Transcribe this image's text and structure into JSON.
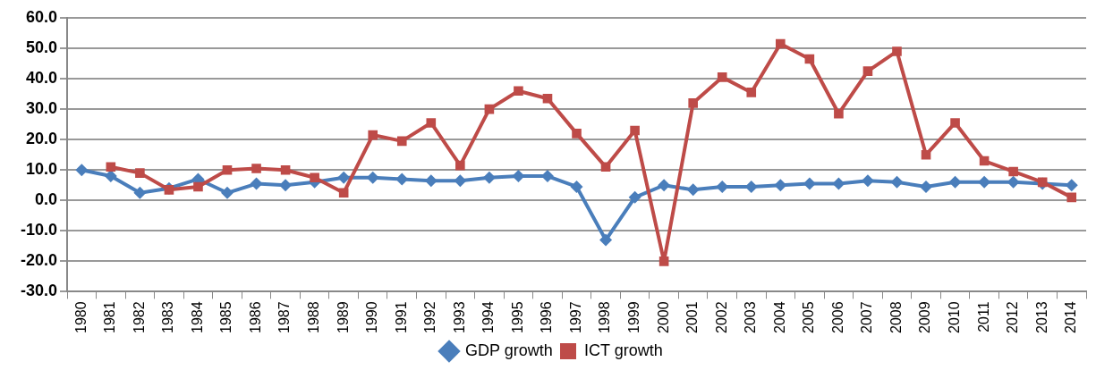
{
  "chart_data": {
    "type": "line",
    "categories": [
      "1980",
      "1981",
      "1982",
      "1983",
      "1984",
      "1985",
      "1986",
      "1987",
      "1988",
      "1989",
      "1990",
      "1991",
      "1992",
      "1993",
      "1994",
      "1995",
      "1996",
      "1997",
      "1998",
      "1999",
      "2000",
      "2001",
      "2002",
      "2003",
      "2004",
      "2005",
      "2006",
      "2007",
      "2008",
      "2009",
      "2010",
      "2011",
      "2012",
      "2013",
      "2014"
    ],
    "series": [
      {
        "name": "GDP growth",
        "color": "#4a7ebb",
        "marker": "diamond",
        "values": [
          10,
          8,
          2.5,
          4,
          7,
          2.5,
          5.5,
          5,
          6,
          7.5,
          7.5,
          7,
          6.5,
          6.5,
          7.5,
          8,
          8,
          4.5,
          -13,
          1,
          5,
          3.5,
          4.5,
          4.5,
          5,
          5.5,
          5.5,
          6.5,
          6,
          4.5,
          6,
          6,
          6,
          5.5,
          5
        ]
      },
      {
        "name": "ICT growth",
        "color": "#be4b48",
        "marker": "square",
        "values": [
          null,
          11,
          9,
          3.5,
          4.5,
          10,
          10.5,
          10,
          7.5,
          2.5,
          21.5,
          19.5,
          25.5,
          11.5,
          30,
          36,
          33.5,
          22,
          11,
          23,
          -20,
          32,
          40.5,
          35.5,
          51.5,
          46.5,
          28.5,
          42.5,
          49,
          15,
          25.5,
          13,
          9.5,
          6,
          1
        ]
      }
    ],
    "ylim": [
      -30,
      60
    ],
    "yticks": [
      {
        "value": -30,
        "label": "-30.0"
      },
      {
        "value": -20,
        "label": "-20.0"
      },
      {
        "value": -10,
        "label": "-10.0"
      },
      {
        "value": 0,
        "label": "0.0"
      },
      {
        "value": 10,
        "label": "10.0"
      },
      {
        "value": 20,
        "label": "20.0"
      },
      {
        "value": 30,
        "label": "30.0"
      },
      {
        "value": 40,
        "label": "40.0"
      },
      {
        "value": 50,
        "label": "50.0"
      },
      {
        "value": 60,
        "label": "60.0"
      }
    ],
    "grid": "y",
    "legend": "bottom",
    "line_style": "solid"
  }
}
